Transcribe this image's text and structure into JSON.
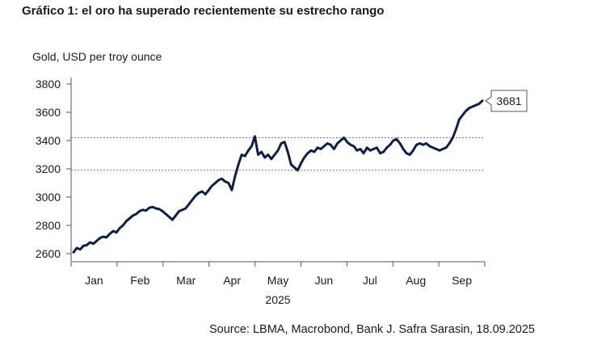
{
  "header": {
    "title": "Gráfico 1: el oro ha superado recientemente su estrecho rango",
    "source": "Source: LBMA, Macrobond, Bank J. Safra Sarasin, 18.09.2025"
  },
  "chart_data": {
    "type": "line",
    "ylabel": "Gold, USD per troy ounce",
    "xlabel": "2025",
    "ylim": [
      2600,
      3800
    ],
    "yticks": [
      2600,
      2800,
      3000,
      3200,
      3400,
      3600,
      3800
    ],
    "month_labels": [
      "Jan",
      "Feb",
      "Mar",
      "Apr",
      "May",
      "Jun",
      "Jul",
      "Aug",
      "Sep"
    ],
    "reference_lines": [
      3420,
      3190
    ],
    "last_value_label": "3681",
    "line_color": "#0d1f45",
    "series": [
      {
        "values": [
          2610,
          2640,
          2630,
          2655,
          2660,
          2680,
          2670,
          2690,
          2710,
          2720,
          2715,
          2740,
          2760,
          2750,
          2780,
          2800,
          2830,
          2850,
          2870,
          2880,
          2900,
          2910,
          2905,
          2925,
          2930,
          2920,
          2915,
          2900,
          2880,
          2860,
          2840,
          2870,
          2900,
          2910,
          2920,
          2950,
          2980,
          3010,
          3030,
          3040,
          3020,
          3050,
          3080,
          3100,
          3120,
          3130,
          3110,
          3100,
          3050,
          3150,
          3230,
          3300,
          3290,
          3330,
          3360,
          3430,
          3300,
          3320,
          3280,
          3300,
          3270,
          3300,
          3330,
          3380,
          3390,
          3320,
          3230,
          3210,
          3190,
          3240,
          3280,
          3310,
          3330,
          3320,
          3350,
          3340,
          3360,
          3380,
          3370,
          3340,
          3380,
          3400,
          3420,
          3390,
          3370,
          3360,
          3330,
          3340,
          3310,
          3350,
          3330,
          3340,
          3350,
          3310,
          3320,
          3350,
          3370,
          3400,
          3410,
          3380,
          3340,
          3310,
          3300,
          3330,
          3370,
          3380,
          3370,
          3380,
          3360,
          3350,
          3340,
          3330,
          3340,
          3350,
          3380,
          3420,
          3480,
          3550,
          3580,
          3610,
          3630,
          3640,
          3650,
          3660,
          3681
        ]
      }
    ]
  }
}
